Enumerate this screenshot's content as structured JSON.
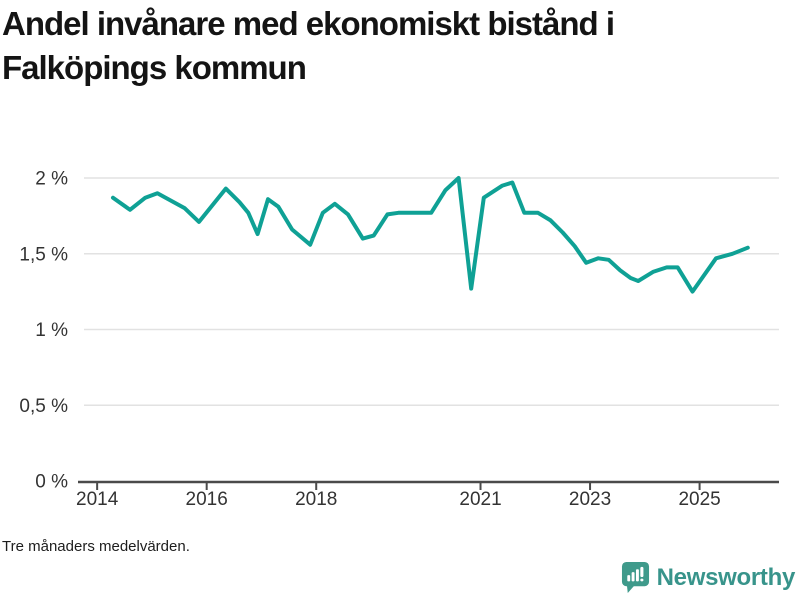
{
  "chart_data": {
    "type": "line",
    "title": "Andel invånare med ekonomiskt bistånd i Falköpings kommun",
    "note": "Tre månaders medelvärden.",
    "unit": "%",
    "xlim": [
      2013.76,
      2026.45
    ],
    "ylim": [
      0,
      2
    ],
    "grid": "horizontal",
    "legend": "none",
    "colors": {
      "line": "#0fa195",
      "grid": "#e2e2e2",
      "axis": "#4a4a4a",
      "tick_label": "#333333",
      "title": "#141414"
    },
    "y_ticks": [
      {
        "value": 0,
        "label": "0 %"
      },
      {
        "value": 0.5,
        "label": "0,5 %"
      },
      {
        "value": 1,
        "label": "1 %"
      },
      {
        "value": 1.5,
        "label": "1,5 %"
      },
      {
        "value": 2,
        "label": "2 %"
      }
    ],
    "x_ticks": [
      {
        "value": 2014,
        "label": "2014"
      },
      {
        "value": 2016,
        "label": "2016"
      },
      {
        "value": 2018,
        "label": "2018"
      },
      {
        "value": 2021,
        "label": "2021"
      },
      {
        "value": 2023,
        "label": "2023"
      },
      {
        "value": 2025,
        "label": "2025"
      }
    ],
    "series": [
      {
        "name": "Andel invånare med ekonomiskt bistånd",
        "points": [
          [
            2014.29,
            1.87
          ],
          [
            2014.6,
            1.79
          ],
          [
            2014.88,
            1.87
          ],
          [
            2015.1,
            1.9
          ],
          [
            2015.35,
            1.85
          ],
          [
            2015.6,
            1.8
          ],
          [
            2015.86,
            1.71
          ],
          [
            2016.35,
            1.93
          ],
          [
            2016.6,
            1.84
          ],
          [
            2016.76,
            1.77
          ],
          [
            2016.93,
            1.63
          ],
          [
            2017.12,
            1.86
          ],
          [
            2017.31,
            1.81
          ],
          [
            2017.56,
            1.66
          ],
          [
            2017.89,
            1.56
          ],
          [
            2018.12,
            1.77
          ],
          [
            2018.34,
            1.83
          ],
          [
            2018.58,
            1.76
          ],
          [
            2018.85,
            1.6
          ],
          [
            2019.05,
            1.62
          ],
          [
            2019.3,
            1.76
          ],
          [
            2019.5,
            1.77
          ],
          [
            2020.1,
            1.77
          ],
          [
            2020.36,
            1.92
          ],
          [
            2020.6,
            2.0
          ],
          [
            2020.83,
            1.27
          ],
          [
            2021.06,
            1.87
          ],
          [
            2021.4,
            1.95
          ],
          [
            2021.58,
            1.97
          ],
          [
            2021.8,
            1.77
          ],
          [
            2022.05,
            1.77
          ],
          [
            2022.28,
            1.72
          ],
          [
            2022.5,
            1.64
          ],
          [
            2022.72,
            1.55
          ],
          [
            2022.93,
            1.44
          ],
          [
            2023.15,
            1.47
          ],
          [
            2023.34,
            1.46
          ],
          [
            2023.55,
            1.39
          ],
          [
            2023.74,
            1.34
          ],
          [
            2023.88,
            1.32
          ],
          [
            2024.15,
            1.38
          ],
          [
            2024.4,
            1.41
          ],
          [
            2024.6,
            1.41
          ],
          [
            2024.87,
            1.25
          ],
          [
            2025.3,
            1.47
          ],
          [
            2025.6,
            1.5
          ],
          [
            2025.88,
            1.54
          ]
        ]
      }
    ]
  },
  "logo": {
    "brand": "Newsworthy",
    "icon_color": "#3f9a8b",
    "icon_glyph_color": "#ffffff",
    "text_color": "#38948b"
  }
}
